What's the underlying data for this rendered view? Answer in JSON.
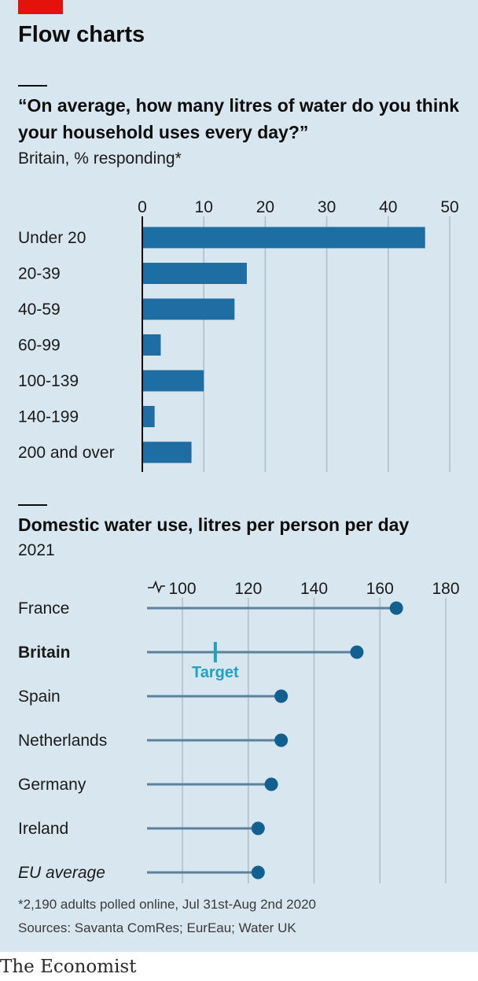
{
  "header": {
    "title": "Flow charts"
  },
  "chart1": {
    "title": "“On average, how many litres of water do you think your household uses every day?”",
    "subtitle": "Britain, % responding*"
  },
  "chart2": {
    "title": "Domestic water use, litres per person per day",
    "subtitle": "2021"
  },
  "footer": {
    "note": "*2,190 adults polled online, Jul 31st-Aug 2nd 2020",
    "sources": "Sources: Savanta ComRes; EurEau; Water UK",
    "brand": "The Economist"
  },
  "colors": {
    "bar": "#1f6ea3",
    "dot": "#11608f",
    "stem": "#5b819b",
    "target": "#1ea2c0",
    "grid": "#a9bfcd",
    "accent": "#e3120b"
  },
  "chart_data": [
    {
      "type": "bar",
      "orientation": "horizontal",
      "categories": [
        "Under 20",
        "20-39",
        "40-59",
        "60-99",
        "100-139",
        "140-199",
        "200 and over"
      ],
      "values": [
        46,
        17,
        15,
        3,
        10,
        2,
        8
      ],
      "xlim": [
        0,
        50
      ],
      "xticks": [
        0,
        10,
        20,
        30,
        40,
        50
      ],
      "grid": true
    },
    {
      "type": "scatter",
      "style": "dot-stem",
      "categories": [
        "France",
        "Britain",
        "Spain",
        "Netherlands",
        "Germany",
        "Ireland",
        "EU average"
      ],
      "emphasis": {
        "bold": "Britain",
        "italic": "EU average"
      },
      "values": [
        165,
        153,
        130,
        130,
        127,
        123,
        123
      ],
      "xlim": [
        89,
        180
      ],
      "xticks": [
        100,
        120,
        140,
        160,
        180
      ],
      "axis_break": true,
      "grid": true,
      "annotation": {
        "label": "Target",
        "category": "Britain",
        "value": 110
      }
    }
  ]
}
